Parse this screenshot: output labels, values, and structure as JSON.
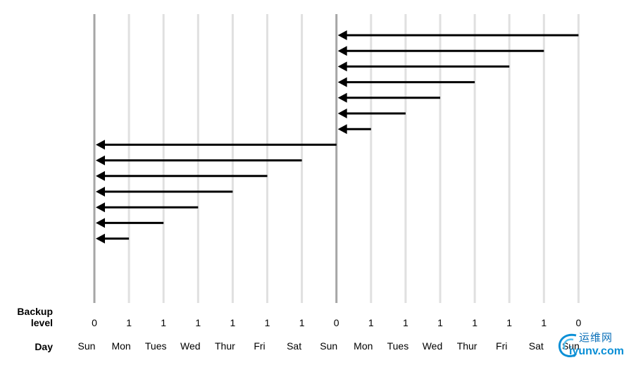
{
  "labels": {
    "backup_line1": "Backup",
    "backup_line2": "level",
    "day": "Day"
  },
  "columns": [
    {
      "day": "Sun",
      "level": "0"
    },
    {
      "day": "Mon",
      "level": "1"
    },
    {
      "day": "Tues",
      "level": "1"
    },
    {
      "day": "Wed",
      "level": "1"
    },
    {
      "day": "Thur",
      "level": "1"
    },
    {
      "day": "Fri",
      "level": "1"
    },
    {
      "day": "Sat",
      "level": "1"
    },
    {
      "day": "Sun",
      "level": "0"
    },
    {
      "day": "Mon",
      "level": "1"
    },
    {
      "day": "Tues",
      "level": "1"
    },
    {
      "day": "Wed",
      "level": "1"
    },
    {
      "day": "Thur",
      "level": "1"
    },
    {
      "day": "Fri",
      "level": "1"
    },
    {
      "day": "Sat",
      "level": "1"
    },
    {
      "day": "Sun",
      "level": "0"
    }
  ],
  "full_backup_columns": [
    0,
    7
  ],
  "arrows": [
    {
      "from": 14,
      "to": 7
    },
    {
      "from": 13,
      "to": 7
    },
    {
      "from": 12,
      "to": 7
    },
    {
      "from": 11,
      "to": 7
    },
    {
      "from": 10,
      "to": 7
    },
    {
      "from": 9,
      "to": 7
    },
    {
      "from": 8,
      "to": 7
    },
    {
      "from": 7,
      "to": 0
    },
    {
      "from": 6,
      "to": 0
    },
    {
      "from": 5,
      "to": 0
    },
    {
      "from": 4,
      "to": 0
    },
    {
      "from": 3,
      "to": 0
    },
    {
      "from": 2,
      "to": 0
    },
    {
      "from": 1,
      "to": 0
    }
  ],
  "colors": {
    "gridline": "#e0e0e0",
    "full_backup_line": "#a6a6a6",
    "arrow": "#000000",
    "watermark": "#0a8fd6"
  },
  "watermark": {
    "chinese": "运维网",
    "url": "iyunv.com"
  }
}
